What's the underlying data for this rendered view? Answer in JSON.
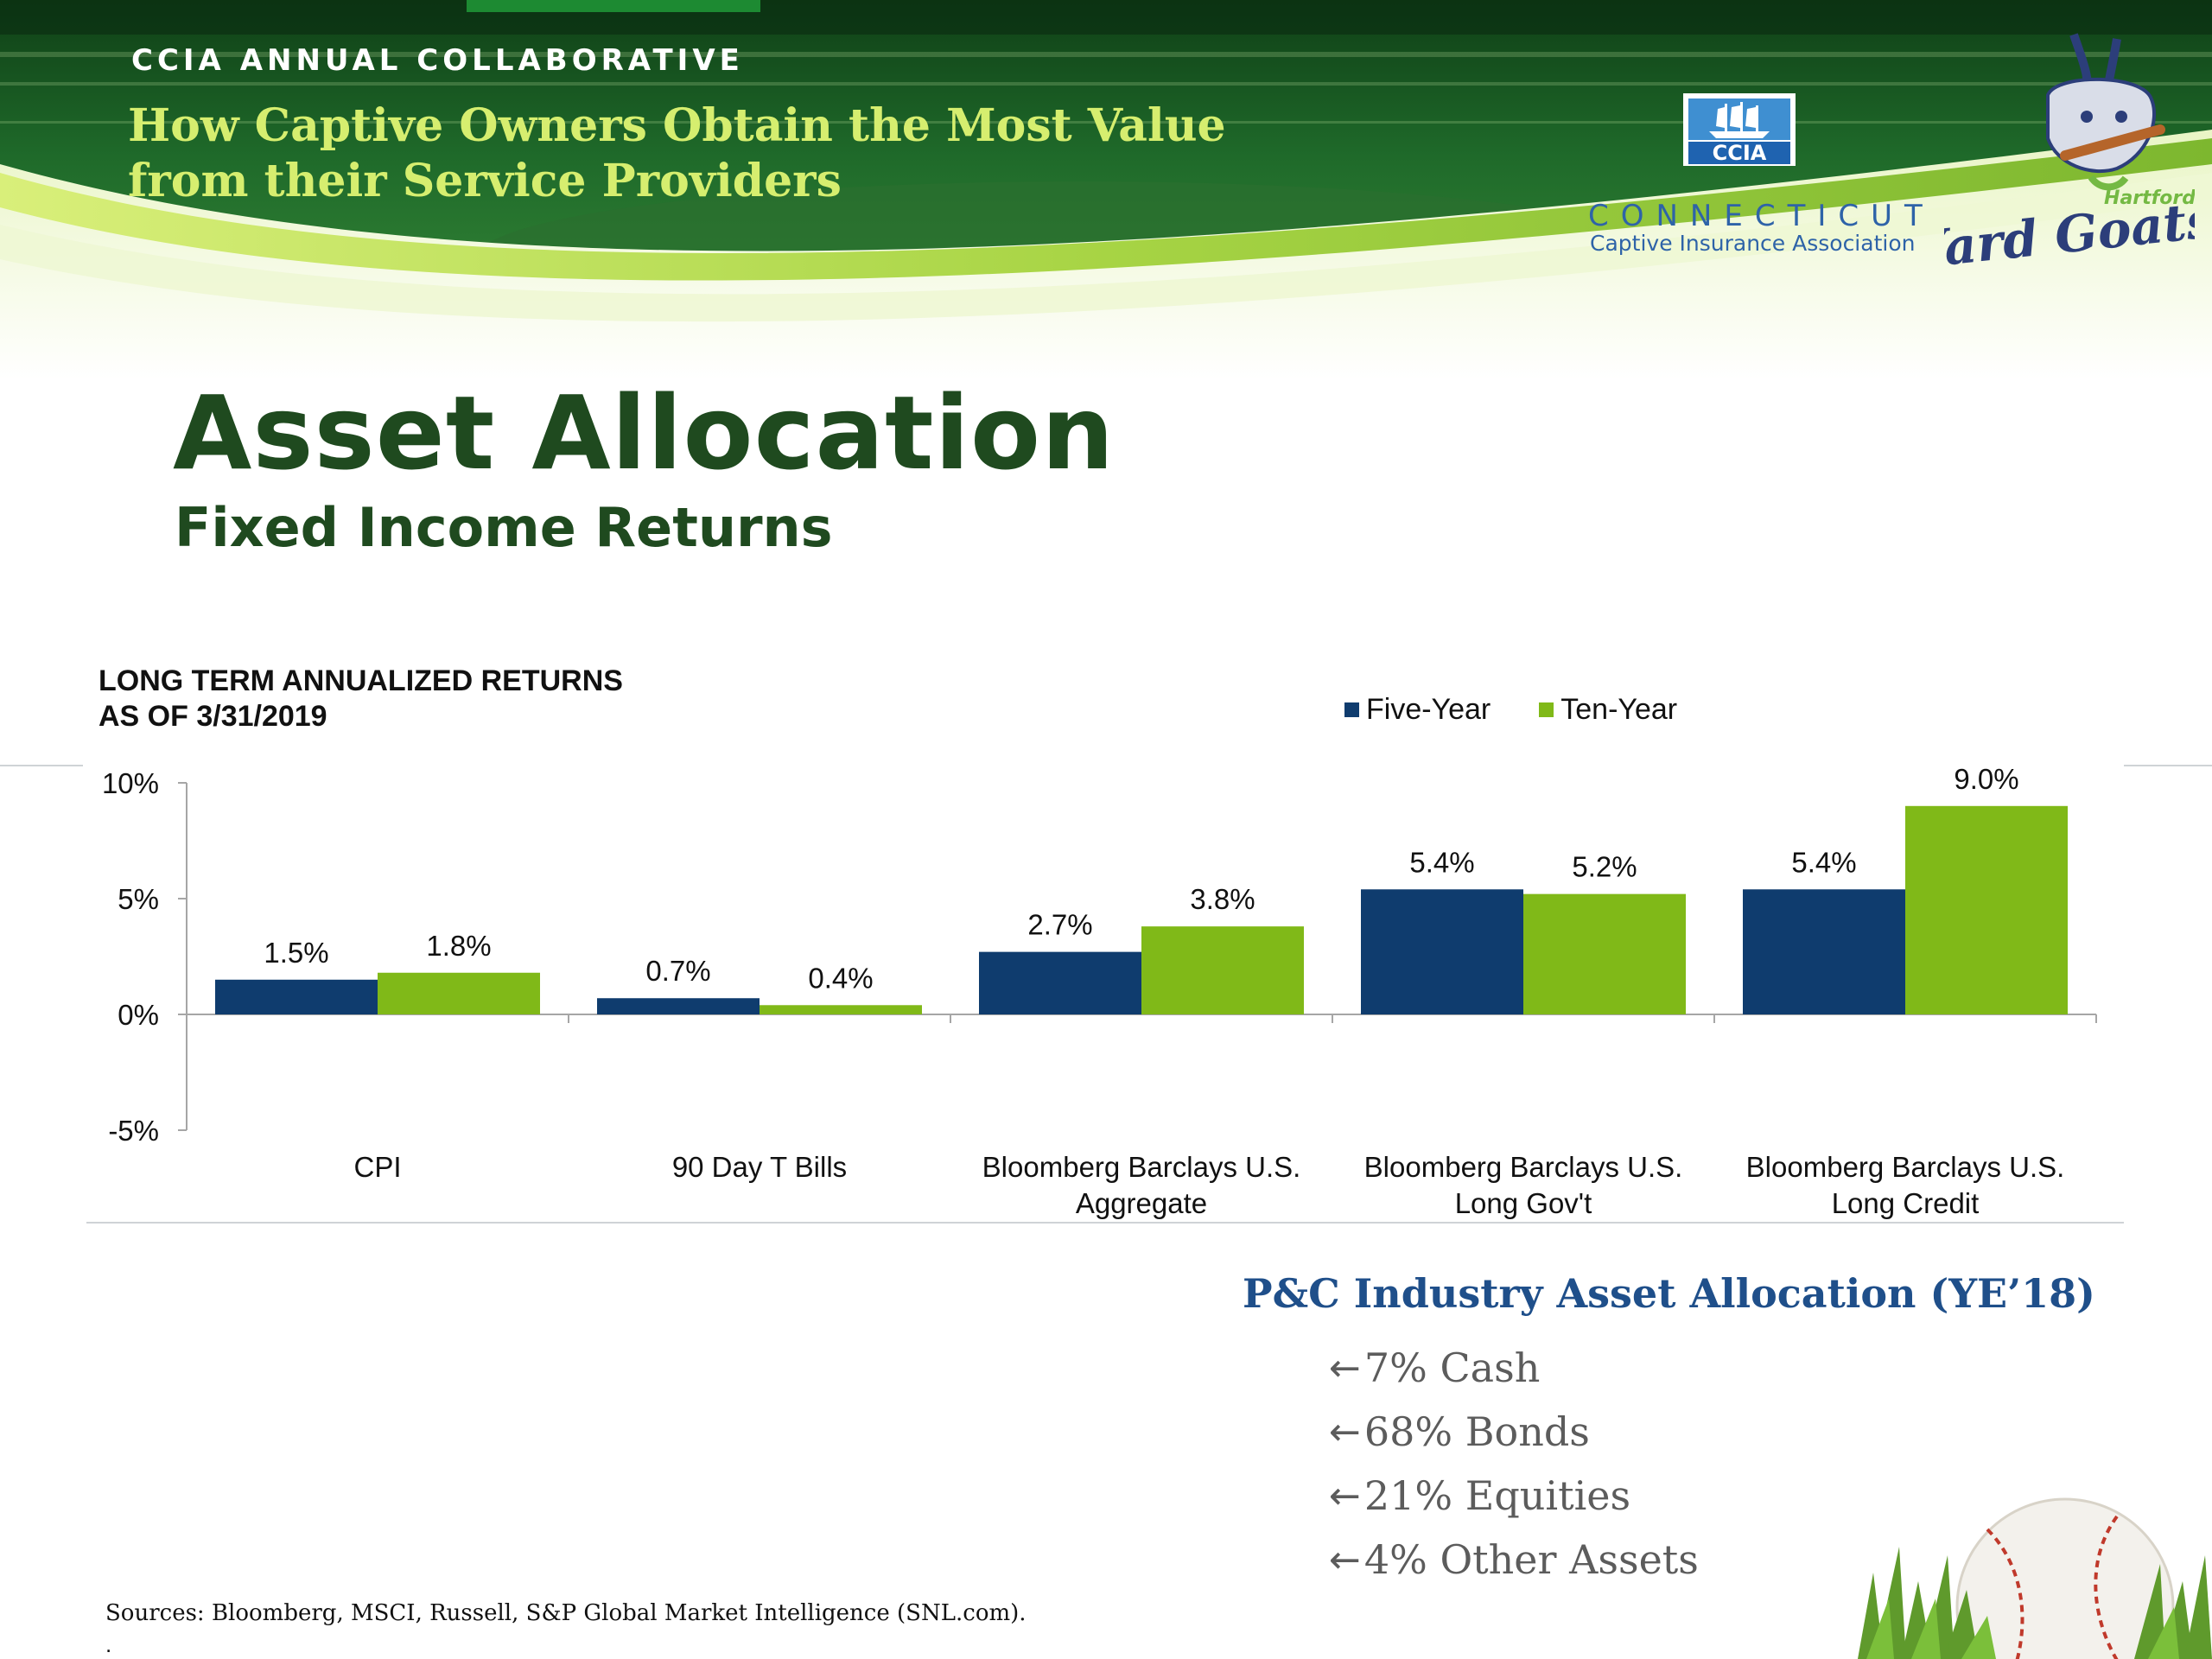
{
  "banner": {
    "event_name": "CCIA ANNUAL COLLABORATIVE",
    "event_title": "How Captive Owners Obtain the Most Value from their Service Providers",
    "ccia_logo_text": "CCIA",
    "ccia_name_line1": "CONNECTICUT",
    "ccia_name_line2": "Captive Insurance Association",
    "team_city": "Hartford",
    "team_name": "Yard Goats",
    "colors": {
      "accent_green": "#8cc63f",
      "dark_green": "#1f4a1f",
      "title_yellow": "#d6ee6f",
      "ccia_blue": "#2e63a8"
    }
  },
  "page": {
    "title": "Asset Allocation",
    "subtitle": "Fixed Income Returns"
  },
  "chart_data": {
    "type": "bar",
    "title_lines": [
      "LONG TERM ANNUALIZED  RETURNS",
      "AS OF 3/31/2019"
    ],
    "categories": [
      [
        "CPI"
      ],
      [
        "90 Day  T Bills"
      ],
      [
        "Bloomberg Barclays U.S.",
        "Aggregate"
      ],
      [
        "Bloomberg Barclays U.S.",
        "Long Gov't"
      ],
      [
        "Bloomberg Barclays U.S.",
        "Long Credit"
      ]
    ],
    "series": [
      {
        "name": "Five-Year",
        "color": "#0f3c6e",
        "values": [
          1.5,
          0.7,
          2.7,
          5.4,
          5.4
        ]
      },
      {
        "name": "Ten-Year",
        "color": "#80b918",
        "values": [
          1.8,
          0.4,
          3.8,
          5.2,
          9.0
        ]
      }
    ],
    "value_suffix": "%",
    "ylim": [
      -5,
      10
    ],
    "yticks": [
      -5,
      0,
      5,
      10
    ],
    "yticklabels": [
      "-5%",
      "0%",
      "5%",
      "10%"
    ],
    "legend_position": "top-right",
    "grid": false
  },
  "allocation": {
    "title": "P&C Industry Asset Allocation (YE’18)",
    "bullet": "←",
    "items": [
      "7% Cash",
      "68% Bonds",
      "21% Equities",
      "4% Other Assets"
    ]
  },
  "footer": {
    "sources": "Sources: Bloomberg, MSCI, Russell,  S&P Global Market Intelligence (SNL.com).",
    "dot": "."
  }
}
